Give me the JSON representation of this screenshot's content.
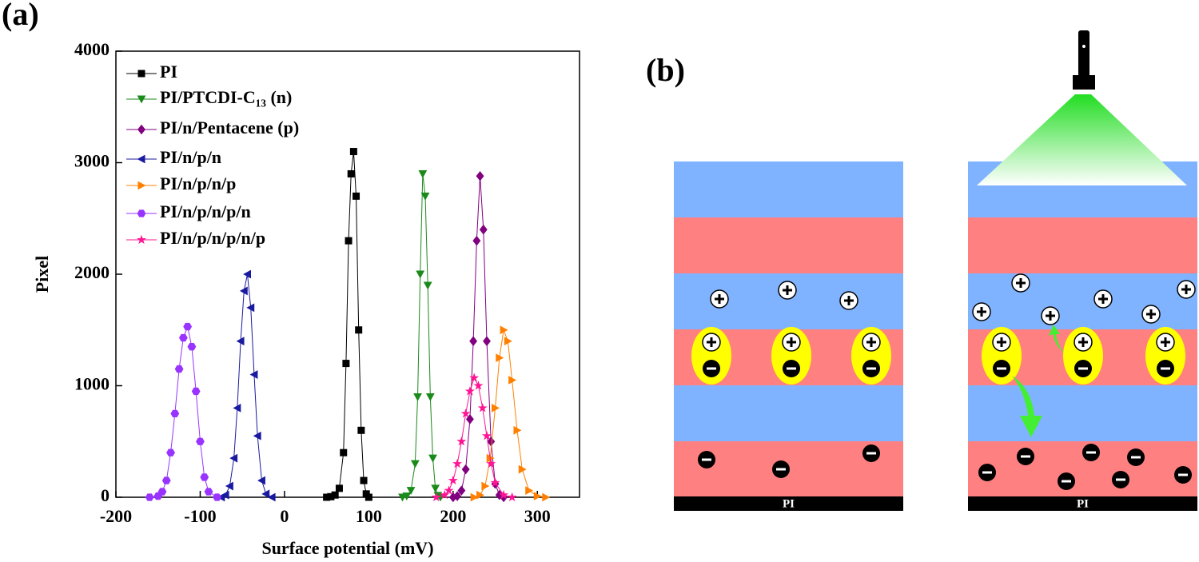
{
  "chart_data": {
    "type": "line",
    "panel_label": "(a)",
    "x_label": "Surface potential (mV)",
    "y_label": "Pixel",
    "xlim": [
      -200,
      350
    ],
    "xticks": [
      -200,
      -100,
      0,
      100,
      200,
      300
    ],
    "ylim": [
      0,
      4000
    ],
    "yticks": [
      0,
      1000,
      2000,
      3000,
      4000
    ],
    "legend": "top-left",
    "series": [
      {
        "name": "PI",
        "color": "#000000",
        "marker": "square",
        "x": [
          50,
          55,
          60,
          65,
          70,
          73,
          76,
          79,
          82,
          85,
          88,
          91,
          94,
          97,
          100
        ],
        "values": [
          0,
          5,
          20,
          80,
          400,
          1200,
          2300,
          2900,
          3100,
          2700,
          1500,
          600,
          150,
          30,
          0
        ]
      },
      {
        "name": "PI/PTCDI-C₁₃ (n)",
        "color": "#1a8a1a",
        "marker": "triangle-down",
        "x": [
          140,
          145,
          150,
          155,
          158,
          161,
          164,
          167,
          170,
          173,
          176,
          179,
          182,
          185
        ],
        "values": [
          0,
          10,
          60,
          300,
          900,
          2000,
          2900,
          2700,
          1900,
          900,
          350,
          80,
          15,
          0
        ]
      },
      {
        "name": "PI/n/Pentacene (p)",
        "color": "#800080",
        "marker": "diamond",
        "x": [
          200,
          205,
          210,
          215,
          220,
          224,
          228,
          232,
          236,
          240,
          245,
          250,
          255,
          260
        ],
        "values": [
          0,
          10,
          60,
          250,
          700,
          1400,
          2300,
          2880,
          2400,
          1400,
          500,
          120,
          20,
          0
        ]
      },
      {
        "name": "PI/n/p/n",
        "color": "#1a1aa0",
        "marker": "triangle-left",
        "x": [
          -75,
          -70,
          -65,
          -60,
          -56,
          -52,
          -48,
          -44,
          -40,
          -36,
          -32,
          -27,
          -22,
          -15
        ],
        "values": [
          0,
          20,
          100,
          350,
          800,
          1400,
          1850,
          2000,
          1700,
          1100,
          550,
          150,
          30,
          0
        ]
      },
      {
        "name": "PI/n/p/n/p",
        "color": "#ff8000",
        "marker": "triangle-right",
        "x": [
          225,
          232,
          238,
          244,
          250,
          255,
          260,
          265,
          270,
          276,
          282,
          290,
          300,
          310
        ],
        "values": [
          0,
          20,
          100,
          350,
          800,
          1250,
          1500,
          1400,
          1050,
          600,
          250,
          60,
          10,
          0
        ]
      },
      {
        "name": "PI/n/p/n/p/n",
        "color": "#9933ff",
        "marker": "hexagon",
        "x": [
          -160,
          -150,
          -145,
          -140,
          -135,
          -130,
          -125,
          -120,
          -115,
          -110,
          -105,
          -100,
          -95,
          -90,
          -80
        ],
        "values": [
          0,
          10,
          50,
          150,
          400,
          750,
          1150,
          1430,
          1530,
          1350,
          950,
          500,
          180,
          50,
          0
        ]
      },
      {
        "name": "PI/n/p/n/p/n/p",
        "color": "#ff1493",
        "marker": "star",
        "x": [
          180,
          190,
          195,
          200,
          205,
          210,
          215,
          220,
          225,
          230,
          235,
          240,
          245,
          250,
          260,
          270
        ],
        "values": [
          0,
          20,
          60,
          150,
          300,
          500,
          750,
          950,
          1070,
          1000,
          800,
          550,
          300,
          130,
          20,
          0
        ]
      }
    ]
  },
  "diagram": {
    "panel_label": "(b)",
    "stacks": [
      {
        "substrate": "PI"
      },
      {
        "substrate": "PI"
      }
    ]
  }
}
